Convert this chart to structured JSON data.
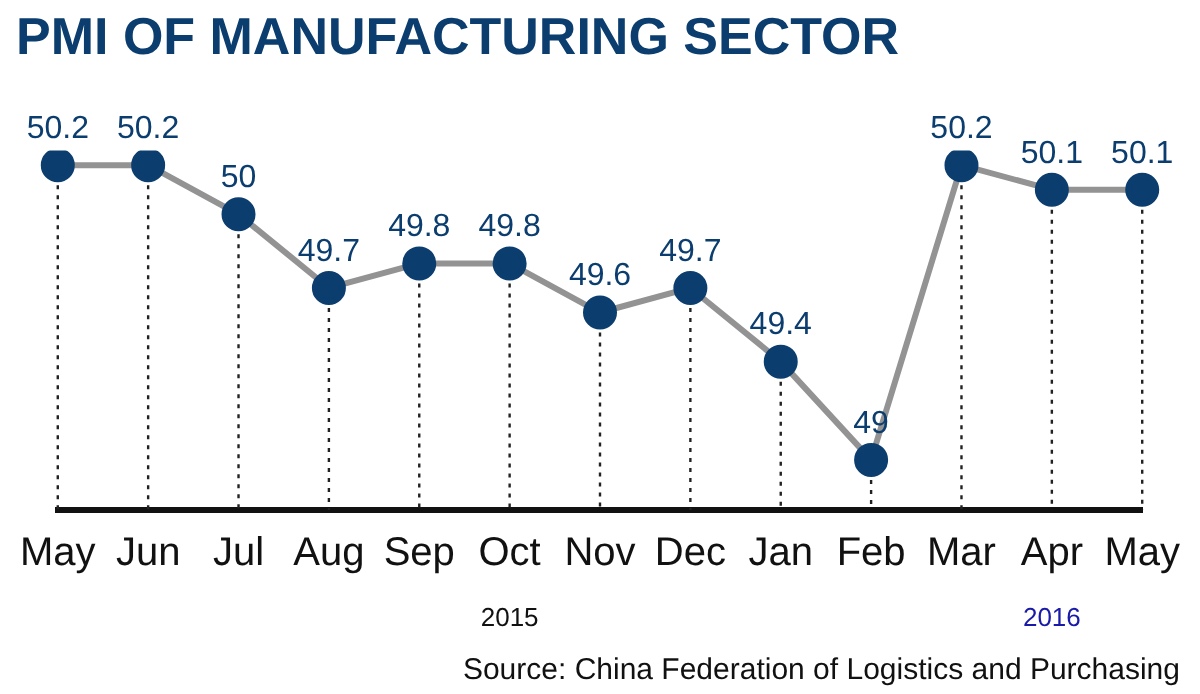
{
  "chart_data": {
    "type": "line",
    "title": "PMI OF MANUFACTURING SECTOR",
    "categories": [
      "May",
      "Jun",
      "Jul",
      "Aug",
      "Sep",
      "Oct",
      "Nov",
      "Dec",
      "Jan",
      "Feb",
      "Mar",
      "Apr",
      "May"
    ],
    "series": [
      {
        "color": "#0b3d6e",
        "values": [
          50.2,
          50.2,
          50,
          49.7,
          49.8,
          49.8,
          49.6,
          49.7,
          49.4,
          49,
          50.2,
          50.1,
          50.1
        ]
      }
    ],
    "marker": "circle",
    "data_labels": true,
    "grid": "x",
    "legend": false,
    "tick_labels": "x",
    "annotations": [
      "2015",
      "2016",
      "Source: China Federation of Logistics and Purchasing"
    ]
  }
}
